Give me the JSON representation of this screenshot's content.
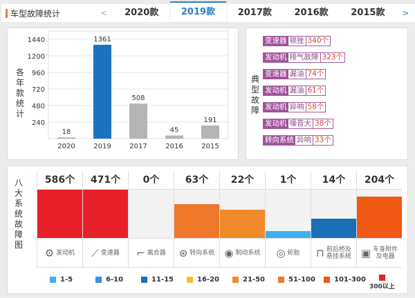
{
  "tabs": {
    "title": "车型故障统计",
    "prev": "<",
    "next": ">",
    "items": [
      "2020款",
      "2019款",
      "2017款",
      "2016款",
      "2015款"
    ],
    "active": "2019款"
  },
  "yearly": {
    "ylabel": "各年款统计",
    "yticks": [
      240,
      480,
      720,
      960,
      1200,
      1440
    ],
    "chart_data": {
      "type": "bar",
      "categories": [
        "2020",
        "2019",
        "2017",
        "2016",
        "2015"
      ],
      "values": [
        18,
        1361,
        508,
        45,
        191
      ],
      "ylim": [
        0,
        1560
      ],
      "highlight": "2019",
      "colors": {
        "highlight": "#1b72c0",
        "default": "#b4b4b4"
      }
    }
  },
  "typical": {
    "label": "典型故障",
    "items": [
      {
        "component": "变速器",
        "fault": "顿挫",
        "count": "340个"
      },
      {
        "component": "发动机",
        "fault": "排气故障",
        "count": "323个"
      },
      {
        "component": "变速器",
        "fault": "漏油",
        "count": "74个"
      },
      {
        "component": "发动机",
        "fault": "漏油",
        "count": "61个"
      },
      {
        "component": "发动机",
        "fault": "异响",
        "count": "58个"
      },
      {
        "component": "发动机",
        "fault": "噪音大",
        "count": "38个"
      },
      {
        "component": "转向系统",
        "fault": "异响",
        "count": "33个"
      }
    ]
  },
  "systems": {
    "label": "八大系统故障图",
    "items": [
      {
        "name": "发动机",
        "count": "586个",
        "icon": "engine-icon",
        "glyph": "⚙",
        "level": 1.0,
        "color": "#e8202a"
      },
      {
        "name": "变速器",
        "count": "471个",
        "icon": "gear-shift-icon",
        "glyph": "⟋",
        "level": 1.0,
        "color": "#e8202a"
      },
      {
        "name": "离合器",
        "count": "0个",
        "icon": "clutch-pedal-icon",
        "glyph": "⌐",
        "level": 0,
        "color": "#f3f3f3"
      },
      {
        "name": "转向系统",
        "count": "63个",
        "icon": "steering-wheel-icon",
        "glyph": "⊛",
        "level": 0.7,
        "color": "#f0782a"
      },
      {
        "name": "制动系统",
        "count": "22个",
        "icon": "brake-disc-icon",
        "glyph": "◉",
        "level": 0.58,
        "color": "#f08a2a"
      },
      {
        "name": "轮胎",
        "count": "1个",
        "icon": "tire-icon",
        "glyph": "◎",
        "level": 0.14,
        "color": "#3db0ee"
      },
      {
        "name": "前后桥及悬挂系统",
        "count": "14个",
        "icon": "suspension-icon",
        "glyph": "⊓",
        "level": 0.4,
        "color": "#1c6fb5"
      },
      {
        "name": "车身附件及电器",
        "count": "204个",
        "icon": "battery-icon",
        "glyph": "▣",
        "level": 0.86,
        "color": "#f05a14"
      }
    ]
  },
  "legend": [
    {
      "label": "1-5",
      "color": "#3db0ee"
    },
    {
      "label": "6-10",
      "color": "#3a8ee6"
    },
    {
      "label": "11-15",
      "color": "#1c6fb5"
    },
    {
      "label": "16-20",
      "color": "#f5c02a"
    },
    {
      "label": "21-50",
      "color": "#f08a2a"
    },
    {
      "label": "51-100",
      "color": "#f0782a"
    },
    {
      "label": "101-300",
      "color": "#f05a14"
    },
    {
      "label": "300以上",
      "color": "#e8202a"
    }
  ]
}
